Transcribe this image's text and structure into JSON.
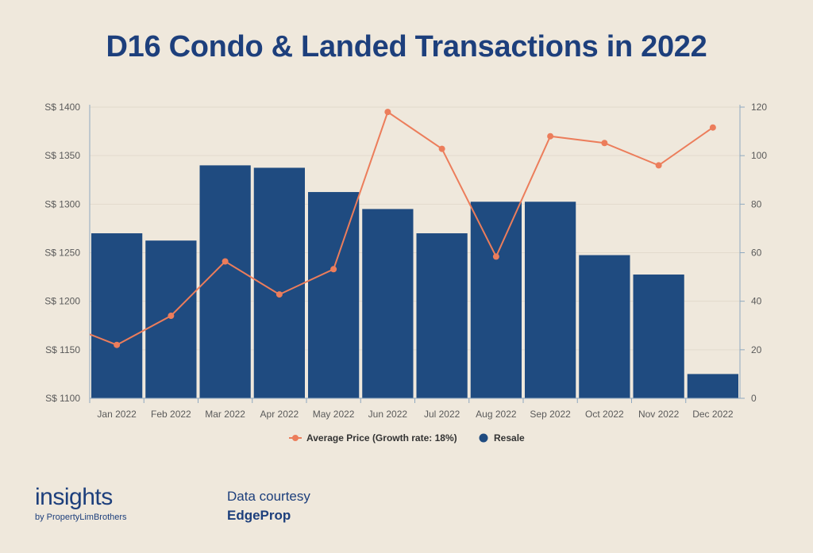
{
  "title": "D16 Condo & Landed Transactions in 2022",
  "chart_data": {
    "type": "bar+line",
    "categories": [
      "Jan 2022",
      "Feb 2022",
      "Mar 2022",
      "Apr 2022",
      "May 2022",
      "Jun 2022",
      "Jul 2022",
      "Aug 2022",
      "Sep 2022",
      "Oct 2022",
      "Nov 2022",
      "Dec 2022"
    ],
    "series": [
      {
        "name": "Resale",
        "type": "bar",
        "axis": "right",
        "color": "#1f4b80",
        "values": [
          68,
          65,
          96,
          95,
          85,
          78,
          68,
          81,
          81,
          59,
          51,
          10
        ]
      },
      {
        "name": "Average Price (Growth rate: 18%)",
        "type": "line",
        "axis": "left",
        "color": "#ec7d5b",
        "values": [
          1155,
          1185,
          1241,
          1207,
          1233,
          1395,
          1357,
          1246,
          1370,
          1363,
          1340,
          1379
        ],
        "leading_value": 1166
      }
    ],
    "y_left": {
      "ticks": [
        "S$ 1100",
        "S$ 1150",
        "S$ 1200",
        "S$ 1250",
        "S$ 1300",
        "S$ 1350",
        "S$ 1400"
      ],
      "range": [
        1100,
        1400
      ]
    },
    "y_right": {
      "ticks": [
        "0",
        "20",
        "40",
        "60",
        "80",
        "100",
        "120"
      ],
      "range": [
        0,
        120
      ]
    },
    "legend": {
      "position": "bottom",
      "items": [
        "Average Price (Growth rate: 18%)",
        "Resale"
      ]
    },
    "grid": true
  },
  "footer": {
    "brand_main": "insights",
    "brand_sub": "by PropertyLimBrothers",
    "credit_line1": "Data courtesy",
    "credit_line2": "EdgeProp"
  }
}
